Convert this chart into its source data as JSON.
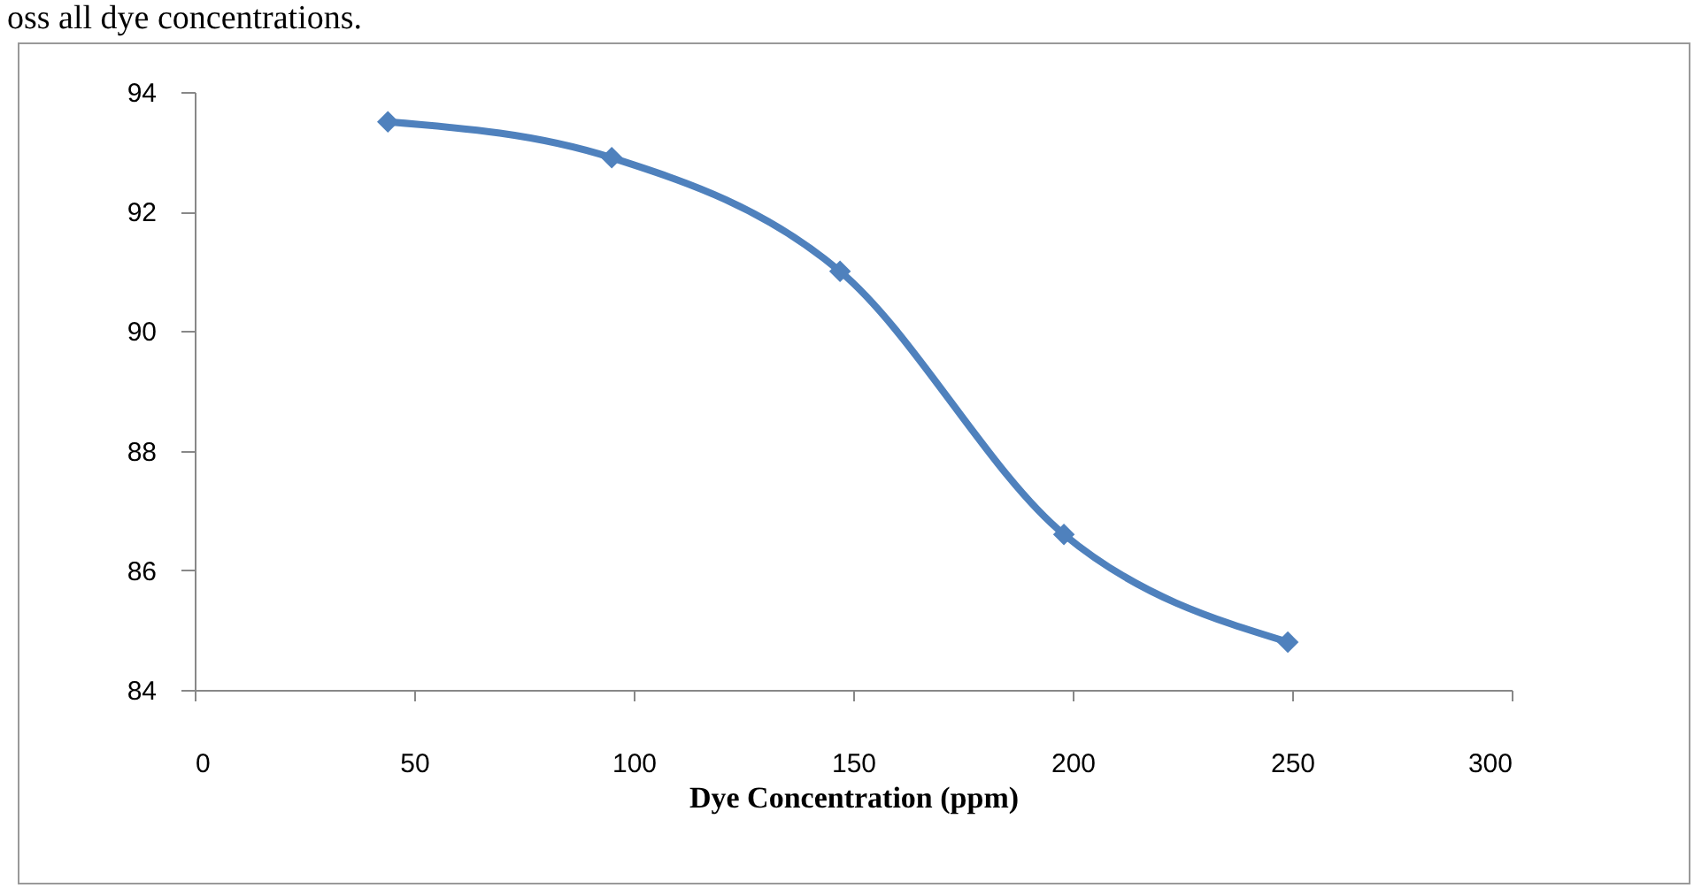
{
  "chart_data": {
    "type": "line",
    "xlabel": "Dye Concentration (ppm)",
    "annotations": [
      "oss all dye concentrations."
    ],
    "x": [
      44,
      95,
      147,
      198,
      249
    ],
    "series": [
      {
        "color": "#4f81bd",
        "values": [
          93.5,
          92.9,
          91.0,
          86.6,
          84.8
        ]
      }
    ],
    "xlim": [
      0,
      300
    ],
    "xticks": [
      0,
      50,
      100,
      150,
      200,
      250,
      300
    ],
    "ylim": [
      84,
      94
    ],
    "yticks": [
      84,
      86,
      88,
      90,
      92,
      94
    ],
    "grid": false,
    "legend": false,
    "marker": "diamond",
    "line_style": "solid"
  }
}
